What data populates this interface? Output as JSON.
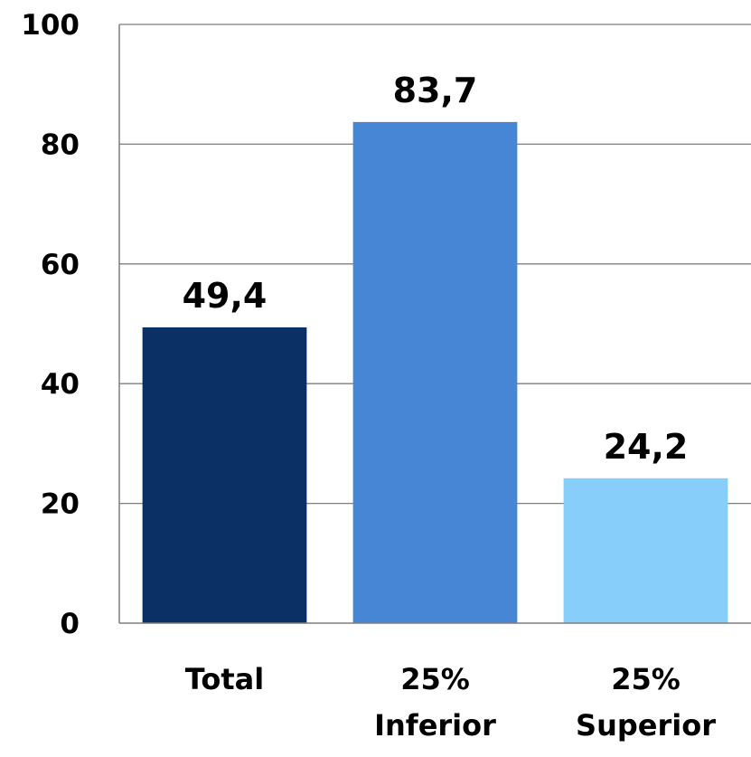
{
  "chart_data": {
    "type": "bar",
    "categories": [
      [
        "Total"
      ],
      [
        "25%",
        "Inferior"
      ],
      [
        "25%",
        "Superior"
      ]
    ],
    "values": [
      49.4,
      83.7,
      24.2
    ],
    "data_labels": [
      "49,4",
      "83,7",
      "24,2"
    ],
    "colors": [
      "#0a3066",
      "#4686d4",
      "#87cefa"
    ],
    "ylim": [
      0,
      100
    ],
    "yticks": [
      0,
      20,
      40,
      60,
      80,
      100
    ],
    "grid": true,
    "legend": "none",
    "title": "",
    "xlabel": "",
    "ylabel": ""
  }
}
